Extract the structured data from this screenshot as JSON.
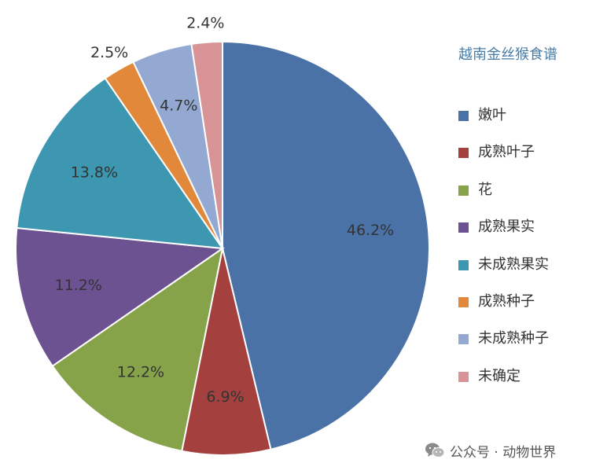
{
  "chart_data": {
    "type": "pie",
    "title": "越南金丝猴食谱",
    "legend_position": "right",
    "slices": [
      {
        "label": "嫩叶",
        "value": 46.2,
        "display": "46.2%",
        "color": "#4a72a6"
      },
      {
        "label": "成熟叶子",
        "value": 6.9,
        "display": "6.9%",
        "color": "#a4413e"
      },
      {
        "label": "花",
        "value": 12.2,
        "display": "12.2%",
        "color": "#87a34a"
      },
      {
        "label": "成熟果实",
        "value": 11.2,
        "display": "11.2%",
        "color": "#6c5291"
      },
      {
        "label": "未成熟果实",
        "value": 13.8,
        "display": "13.8%",
        "color": "#3d97b0"
      },
      {
        "label": "成熟种子",
        "value": 2.5,
        "display": "2.5%",
        "color": "#e2883a"
      },
      {
        "label": "未成熟种子",
        "value": 4.7,
        "display": "4.7%",
        "color": "#93a9d2"
      },
      {
        "label": "未确定",
        "value": 2.4,
        "display": "2.4%",
        "color": "#d79395"
      }
    ]
  },
  "watermark": {
    "text": "公众号 · 动物世界",
    "icon": "wechat-icon"
  }
}
